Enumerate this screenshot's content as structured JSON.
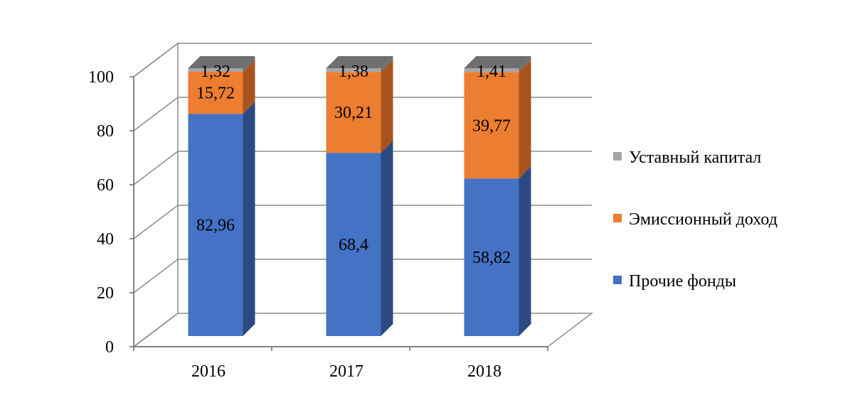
{
  "chart_data": {
    "type": "bar",
    "stacked": true,
    "three_d": true,
    "title": "",
    "xlabel": "",
    "ylabel": "",
    "categories": [
      "2016",
      "2017",
      "2018"
    ],
    "series": [
      {
        "name": "Прочие фонды",
        "color": "#4472C4",
        "side_color": "#2B4A82",
        "values": [
          82.96,
          68.4,
          58.82
        ],
        "labels": [
          "82,96",
          "68,4",
          "58,82"
        ]
      },
      {
        "name": "Эмиссионный доход",
        "color": "#ED7D31",
        "side_color": "#A9541E",
        "values": [
          15.72,
          30.21,
          39.77
        ],
        "labels": [
          "15,72",
          "30,21",
          "39,77"
        ]
      },
      {
        "name": "Уставный капитал",
        "color": "#A5A5A5",
        "side_color": "#6E6E6E",
        "values": [
          1.32,
          1.38,
          1.41
        ],
        "labels": [
          "1,32",
          "1,38",
          "1,41"
        ]
      }
    ],
    "legend_order": [
      "Уставный капитал",
      "Эмиссионный доход",
      "Прочие фонды"
    ],
    "ylim": [
      0,
      100
    ],
    "yticks": [
      0,
      20,
      40,
      60,
      80,
      100
    ],
    "ytick_labels": [
      "0",
      "20",
      "40",
      "60",
      "80",
      "100"
    ],
    "grid": true,
    "legend_position": "right"
  }
}
